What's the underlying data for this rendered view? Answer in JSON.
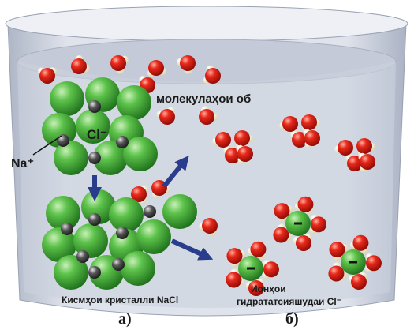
{
  "labels": {
    "water_molecules": "молекулаҳои об",
    "chloride": "Cl⁻",
    "sodium": "Na⁺",
    "crystal_parts": "Кисмҳои кристалли NaCl",
    "hydrated_ions": [
      "Ионҳои",
      "гидрататсияшудаи Cl⁻"
    ],
    "part_a": "а)",
    "part_b": "б)"
  }
}
